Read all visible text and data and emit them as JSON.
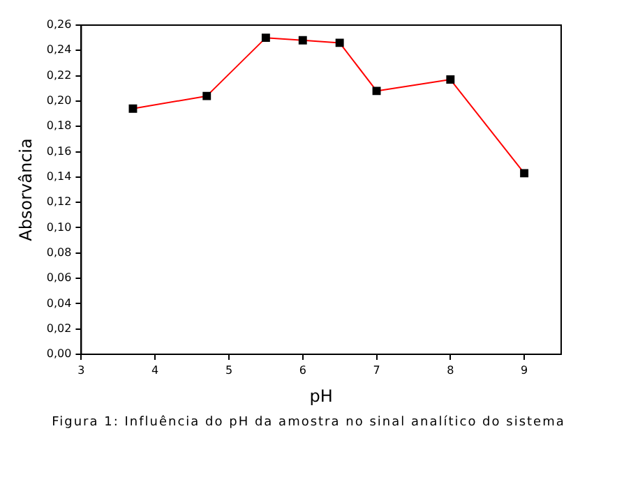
{
  "chart_data": {
    "type": "line",
    "xlabel": "pH",
    "ylabel": "Absorvância",
    "annotations": [
      "Figura 1: Influência do pH da amostra no sinal analítico do sistema"
    ],
    "x": [
      3.7,
      4.7,
      5.5,
      6.0,
      6.5,
      7.0,
      8.0,
      9.0
    ],
    "series": [
      {
        "color": "#ff0000",
        "values": [
          0.194,
          0.204,
          0.25,
          0.248,
          0.246,
          0.208,
          0.217,
          0.143
        ]
      }
    ],
    "xlim": [
      3,
      9.5
    ],
    "xticks": [
      3,
      4,
      5,
      6,
      7,
      8,
      9
    ],
    "ylim": [
      0,
      0.26
    ],
    "yticks": [
      {
        "value": 0,
        "label": "0,00"
      },
      {
        "value": 0.02,
        "label": "0,02"
      },
      {
        "value": 0.04,
        "label": "0,04"
      },
      {
        "value": 0.06,
        "label": "0,06"
      },
      {
        "value": 0.08,
        "label": "0,08"
      },
      {
        "value": 0.1,
        "label": "0,10"
      },
      {
        "value": 0.12,
        "label": "0,12"
      },
      {
        "value": 0.14,
        "label": "0,14"
      },
      {
        "value": 0.16,
        "label": "0,16"
      },
      {
        "value": 0.18,
        "label": "0,18"
      },
      {
        "value": 0.2,
        "label": "0,20"
      },
      {
        "value": 0.22,
        "label": "0,22"
      },
      {
        "value": 0.24,
        "label": "0,24"
      },
      {
        "value": 0.26,
        "label": "0,26"
      }
    ],
    "grid": false,
    "legend": false,
    "marker": "square",
    "line_style": "solid"
  }
}
